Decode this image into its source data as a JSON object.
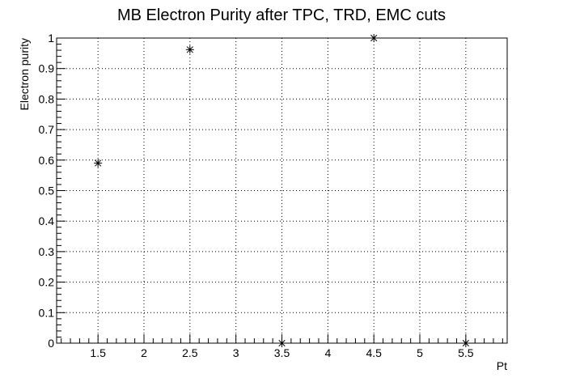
{
  "chart_data": {
    "type": "scatter",
    "title": "MB Electron Purity after TPC, TRD, EMC cuts",
    "xlabel": "Pt",
    "ylabel": "Electron purity",
    "xlim": [
      1.05,
      5.95
    ],
    "ylim": [
      0,
      1
    ],
    "grid": true,
    "marker": "asterisk",
    "x_ticks": [
      1.5,
      2,
      2.5,
      3,
      3.5,
      4,
      4.5,
      5,
      5.5
    ],
    "x_tick_labels": [
      "1.5",
      "2",
      "2.5",
      "3",
      "3.5",
      "4",
      "4.5",
      "5",
      "5.5"
    ],
    "y_ticks": [
      0,
      0.1,
      0.2,
      0.3,
      0.4,
      0.5,
      0.6,
      0.7,
      0.8,
      0.9,
      1
    ],
    "y_tick_labels": [
      "0",
      "0.1",
      "0.2",
      "0.3",
      "0.4",
      "0.5",
      "0.6",
      "0.7",
      "0.8",
      "0.9",
      "1"
    ],
    "points": [
      {
        "x": 1.5,
        "y": 0.59
      },
      {
        "x": 2.5,
        "y": 0.962
      },
      {
        "x": 3.5,
        "y": 0.0
      },
      {
        "x": 4.5,
        "y": 1.0
      },
      {
        "x": 5.5,
        "y": 0.0
      }
    ],
    "colors": {
      "marker": "#000000",
      "grid": "#000000",
      "frame": "#000000"
    }
  }
}
